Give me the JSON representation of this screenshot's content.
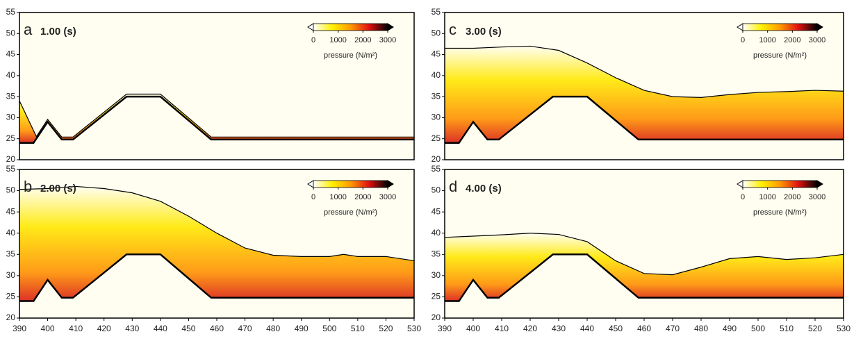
{
  "chart_data": [
    {
      "type": "line",
      "panel": "a",
      "title": "1.00 (s)",
      "xlim": [
        390,
        530
      ],
      "ylim": [
        20,
        55
      ],
      "yticks": [
        20,
        25,
        30,
        35,
        40,
        45,
        50,
        55
      ],
      "colorbar": {
        "ticks": [
          0,
          1000,
          2000,
          3000
        ],
        "lim": [
          0,
          3000
        ],
        "label": "pressure (N/m²)",
        "colors": [
          "#ffffff",
          "#fff200",
          "#ff9a00",
          "#e01010",
          "#000000"
        ]
      },
      "series": [
        {
          "color": "#000000",
          "x": [
            390,
            396,
            400,
            405,
            409,
            428,
            440,
            458,
            530
          ],
          "values": [
            34,
            25.5,
            29.6,
            25.4,
            25.4,
            35.6,
            35.6,
            25.4,
            25.4
          ]
        },
        {
          "color": "#000000",
          "x": [
            390,
            393,
            395,
            400,
            405,
            409,
            428,
            440,
            458,
            530
          ],
          "values": [
            24,
            24,
            24,
            29,
            24.8,
            24.8,
            35,
            35,
            24.8,
            24.8
          ]
        }
      ]
    },
    {
      "type": "line",
      "panel": "b",
      "title": "2.00 (s)",
      "xlim": [
        390,
        530
      ],
      "ylim": [
        20,
        55
      ],
      "yticks": [
        20,
        25,
        30,
        35,
        40,
        45,
        50,
        55
      ],
      "xticks": [
        390,
        400,
        410,
        420,
        430,
        440,
        450,
        460,
        470,
        480,
        490,
        500,
        510,
        520,
        530
      ],
      "colorbar": {
        "ticks": [
          0,
          1000,
          2000,
          3000
        ],
        "lim": [
          0,
          3000
        ],
        "label": "pressure (N/m²)",
        "colors": [
          "#ffffff",
          "#fff200",
          "#ff9a00",
          "#e01010",
          "#000000"
        ]
      },
      "series": [
        {
          "color": "#000000",
          "x": [
            390,
            400,
            410,
            420,
            430,
            440,
            450,
            460,
            470,
            480,
            490,
            500,
            505,
            510,
            520,
            530
          ],
          "values": [
            50.3,
            50.5,
            51,
            50.5,
            49.5,
            47.5,
            44,
            40,
            36.5,
            34.8,
            34.5,
            34.5,
            35,
            34.5,
            34.5,
            33.5
          ]
        },
        {
          "color": "#000000",
          "x": [
            390,
            393,
            395,
            400,
            405,
            409,
            428,
            440,
            458,
            530
          ],
          "values": [
            24,
            24,
            24,
            29,
            24.8,
            24.8,
            35,
            35,
            24.8,
            24.8
          ]
        }
      ]
    },
    {
      "type": "line",
      "panel": "c",
      "title": "3.00 (s)",
      "xlim": [
        390,
        530
      ],
      "ylim": [
        20,
        55
      ],
      "yticks": [
        20,
        25,
        30,
        35,
        40,
        45,
        50,
        55
      ],
      "colorbar": {
        "ticks": [
          0,
          1000,
          2000,
          3000
        ],
        "lim": [
          0,
          3000
        ],
        "label": "pressure (N/m²)",
        "colors": [
          "#ffffff",
          "#fff200",
          "#ff9a00",
          "#e01010",
          "#000000"
        ]
      },
      "series": [
        {
          "color": "#000000",
          "x": [
            390,
            400,
            410,
            420,
            430,
            440,
            450,
            460,
            470,
            480,
            490,
            500,
            510,
            520,
            530
          ],
          "values": [
            46.5,
            46.5,
            46.8,
            47,
            46,
            43,
            39.5,
            36.5,
            35,
            34.8,
            35.5,
            36,
            36.2,
            36.5,
            36.3
          ]
        },
        {
          "color": "#000000",
          "x": [
            390,
            393,
            395,
            400,
            405,
            409,
            428,
            440,
            458,
            530
          ],
          "values": [
            24,
            24,
            24,
            29,
            24.8,
            24.8,
            35,
            35,
            24.8,
            24.8
          ]
        }
      ]
    },
    {
      "type": "line",
      "panel": "d",
      "title": "4.00 (s)",
      "xlim": [
        390,
        530
      ],
      "ylim": [
        20,
        55
      ],
      "yticks": [
        20,
        25,
        30,
        35,
        40,
        45,
        50,
        55
      ],
      "xticks": [
        390,
        400,
        410,
        420,
        430,
        440,
        450,
        460,
        470,
        480,
        490,
        500,
        510,
        520,
        530
      ],
      "colorbar": {
        "ticks": [
          0,
          1000,
          2000,
          3000
        ],
        "lim": [
          0,
          3000
        ],
        "label": "pressure (N/m²)",
        "colors": [
          "#ffffff",
          "#fff200",
          "#ff9a00",
          "#e01010",
          "#000000"
        ]
      },
      "series": [
        {
          "color": "#000000",
          "x": [
            390,
            400,
            410,
            420,
            430,
            440,
            450,
            460,
            470,
            480,
            490,
            500,
            510,
            520,
            530
          ],
          "values": [
            39,
            39.3,
            39.6,
            40,
            39.7,
            38,
            33.5,
            30.5,
            30.2,
            32,
            34,
            34.5,
            33.8,
            34.2,
            35
          ]
        },
        {
          "color": "#000000",
          "x": [
            390,
            393,
            395,
            400,
            405,
            409,
            428,
            440,
            458,
            530
          ],
          "values": [
            24,
            24,
            24,
            29,
            24.8,
            24.8,
            35,
            35,
            24.8,
            24.8
          ]
        }
      ]
    }
  ]
}
